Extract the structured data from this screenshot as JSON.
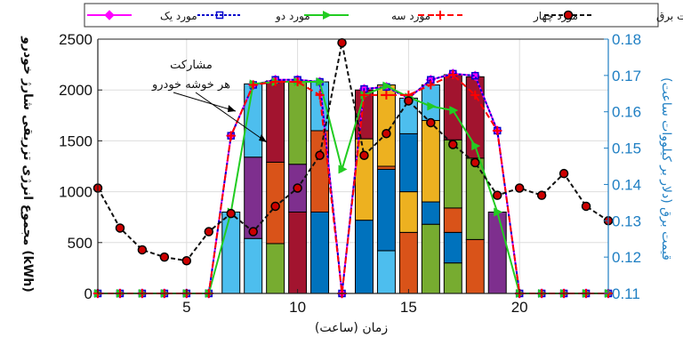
{
  "chart_data": {
    "type": "bar",
    "xlabel": "زمان (ساعت)",
    "ylabel_left": "(kWh) مجموع انرژی تزریقی شارژ خودرو",
    "ylabel_right": "قیمت برق (دلار بر کیلووات ساعت)",
    "xlim": [
      1,
      24
    ],
    "ylim_left": [
      0,
      2500
    ],
    "ylim_right": [
      0.11,
      0.18
    ],
    "xticks": [
      "5",
      "10",
      "15",
      "20"
    ],
    "yticks_left": [
      "0",
      "500",
      "1000",
      "1500",
      "2000",
      "2500"
    ],
    "yticks_right": [
      "0.11",
      "0.12",
      "0.13",
      "0.14",
      "0.15",
      "0.16",
      "0.17",
      "0.18"
    ],
    "grid": true,
    "legend_position": "top",
    "annotation": [
      "مشارکت",
      "هر خوشه خودرو"
    ],
    "colors": {
      "case1": "#ff00ff",
      "case2": "#0000cc",
      "case3": "#22cc22",
      "case4": "#ff0000",
      "price": "#111111",
      "price_marker": "#cc0000",
      "right_axis": "#1f7fc3"
    },
    "cluster_colors": [
      "#0072bd",
      "#d95319",
      "#edb120",
      "#7e2f8e",
      "#77ac30",
      "#4dbeee",
      "#a2142f"
    ],
    "series": [
      {
        "name": "مورد یک",
        "axis": "left",
        "values": [
          0,
          0,
          0,
          0,
          0,
          0,
          1550,
          2050,
          2100,
          2100,
          2080,
          0,
          2010,
          2030,
          1920,
          2100,
          2160,
          2140,
          1600,
          0,
          0,
          0,
          0,
          0
        ]
      },
      {
        "name": "مورد دو",
        "axis": "left",
        "values": [
          0,
          0,
          0,
          0,
          0,
          0,
          1550,
          2050,
          2100,
          2100,
          2080,
          0,
          2010,
          2030,
          1920,
          2100,
          2160,
          2140,
          1600,
          0,
          0,
          0,
          0,
          0
        ]
      },
      {
        "name": "مورد سه",
        "axis": "left",
        "values": [
          0,
          0,
          0,
          0,
          0,
          0,
          800,
          2060,
          2080,
          2080,
          2080,
          1220,
          1950,
          2040,
          1930,
          1840,
          1800,
          1450,
          800,
          0,
          0,
          0,
          0,
          0
        ]
      },
      {
        "name": "مورد چهار",
        "axis": "left",
        "values": [
          0,
          0,
          0,
          0,
          0,
          0,
          1550,
          2050,
          2080,
          2080,
          1950,
          0,
          1950,
          1950,
          1950,
          2050,
          2150,
          1950,
          1600,
          0,
          0,
          0,
          0,
          0
        ]
      },
      {
        "name": "قیمت برق",
        "axis": "right",
        "values": [
          0.139,
          0.128,
          0.122,
          0.12,
          0.119,
          0.127,
          0.132,
          0.127,
          0.134,
          0.139,
          0.148,
          0.179,
          0.148,
          0.154,
          0.163,
          0.157,
          0.151,
          0.146,
          0.137,
          0.139,
          0.137,
          0.143,
          0.134,
          0.13
        ]
      }
    ],
    "stacked_bars": [
      {
        "x": 7,
        "segments": [
          [
            5,
            800
          ]
        ]
      },
      {
        "x": 8,
        "segments": [
          [
            5,
            540
          ],
          [
            3,
            800
          ],
          [
            5,
            720
          ]
        ]
      },
      {
        "x": 9,
        "segments": [
          [
            4,
            490
          ],
          [
            1,
            800
          ],
          [
            6,
            800
          ]
        ]
      },
      {
        "x": 10,
        "segments": [
          [
            6,
            800
          ],
          [
            3,
            470
          ],
          [
            4,
            810
          ]
        ]
      },
      {
        "x": 11,
        "segments": [
          [
            0,
            800
          ],
          [
            1,
            800
          ],
          [
            5,
            480
          ]
        ]
      },
      {
        "x": 13,
        "segments": [
          [
            0,
            720
          ],
          [
            2,
            800
          ],
          [
            6,
            480
          ]
        ]
      },
      {
        "x": 14,
        "segments": [
          [
            5,
            420
          ],
          [
            0,
            800
          ],
          [
            1,
            30
          ],
          [
            2,
            800
          ]
        ]
      },
      {
        "x": 15,
        "segments": [
          [
            1,
            600
          ],
          [
            2,
            400
          ],
          [
            0,
            570
          ],
          [
            5,
            350
          ]
        ]
      },
      {
        "x": 16,
        "segments": [
          [
            4,
            680
          ],
          [
            0,
            220
          ],
          [
            2,
            800
          ],
          [
            5,
            350
          ]
        ]
      },
      {
        "x": 17,
        "segments": [
          [
            4,
            300
          ],
          [
            0,
            300
          ],
          [
            1,
            240
          ],
          [
            4,
            670
          ],
          [
            6,
            640
          ]
        ]
      },
      {
        "x": 18,
        "segments": [
          [
            1,
            530
          ],
          [
            4,
            800
          ],
          [
            6,
            800
          ]
        ]
      },
      {
        "x": 19,
        "segments": [
          [
            3,
            800
          ]
        ]
      }
    ]
  }
}
